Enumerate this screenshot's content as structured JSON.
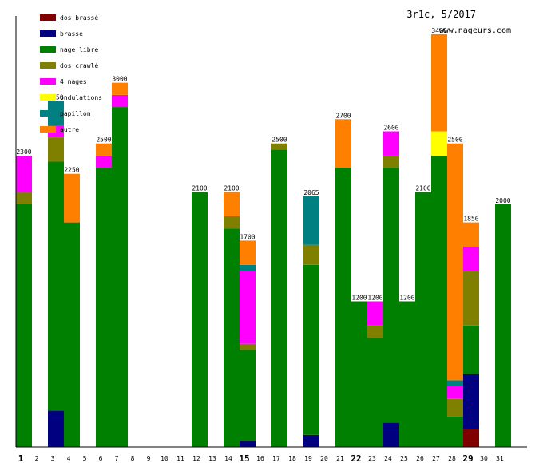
{
  "header": {
    "title": "3r1c, 5/2017",
    "site": "www.nageurs.com"
  },
  "legend": [
    {
      "key": "dos_brasse",
      "label": "dos brassé",
      "color": "#800000"
    },
    {
      "key": "brasse",
      "label": "brasse",
      "color": "#000080"
    },
    {
      "key": "nage_libre",
      "label": "nage libre",
      "color": "#008000"
    },
    {
      "key": "dos_crawle",
      "label": "dos crawlé",
      "color": "#808000"
    },
    {
      "key": "quatre_nages",
      "label": "4 nages",
      "color": "#ff00ff"
    },
    {
      "key": "ondulations",
      "label": "ondulations",
      "color": "#ffff00"
    },
    {
      "key": "papillon",
      "label": "papillon",
      "color": "#008080"
    },
    {
      "key": "autre",
      "label": "autre",
      "color": "#ff8000"
    }
  ],
  "chart_data": {
    "type": "bar",
    "stacked": true,
    "ylim": [
      0,
      3550
    ],
    "legend_position": "top-left",
    "x_ticks": [
      "1",
      "2",
      "3",
      "4",
      "5",
      "6",
      "7",
      "8",
      "9",
      "10",
      "11",
      "12",
      "13",
      "14",
      "15",
      "16",
      "17",
      "18",
      "19",
      "20",
      "21",
      "22",
      "23",
      "24",
      "25",
      "26",
      "27",
      "28",
      "29",
      "30",
      "31"
    ],
    "bold_ticks": [
      "1",
      "15",
      "22",
      "29"
    ],
    "bars": [
      {
        "day": 1,
        "total_label": "2300",
        "segments": {
          "nage_libre": 2000,
          "dos_crawle": 100,
          "quatre_nages": 300
        }
      },
      {
        "day": 3,
        "total_label": "2850",
        "segments": {
          "brasse": 300,
          "nage_libre": 2050,
          "dos_crawle": 200,
          "quatre_nages": 100,
          "papillon": 200
        }
      },
      {
        "day": 4,
        "total_label": "2250",
        "segments": {
          "nage_libre": 1850,
          "autre": 400
        }
      },
      {
        "day": 6,
        "total_label": "2500",
        "segments": {
          "nage_libre": 2300,
          "quatre_nages": 100,
          "autre": 100
        }
      },
      {
        "day": 7,
        "total_label": "3000",
        "segments": {
          "nage_libre": 2800,
          "quatre_nages": 100,
          "autre": 100
        }
      },
      {
        "day": 12,
        "total_label": "2100",
        "segments": {
          "nage_libre": 2100
        }
      },
      {
        "day": 14,
        "total_label": "2100",
        "segments": {
          "nage_libre": 1800,
          "dos_crawle": 100,
          "autre": 200
        }
      },
      {
        "day": 15,
        "total_label": "1700",
        "segments": {
          "brasse": 50,
          "nage_libre": 750,
          "dos_crawle": 50,
          "quatre_nages": 600,
          "papillon": 50,
          "autre": 200
        }
      },
      {
        "day": 17,
        "total_label": "2500",
        "segments": {
          "nage_libre": 2450,
          "dos_crawle": 50
        }
      },
      {
        "day": 19,
        "total_label": "2065",
        "segments": {
          "brasse": 100,
          "nage_libre": 1400,
          "dos_crawle": 165,
          "papillon": 400
        }
      },
      {
        "day": 21,
        "total_label": "2700",
        "segments": {
          "nage_libre": 2300,
          "autre": 400
        }
      },
      {
        "day": 22,
        "total_label": "1200",
        "segments": {
          "nage_libre": 1200
        }
      },
      {
        "day": 23,
        "total_label": "1200",
        "segments": {
          "nage_libre": 900,
          "dos_crawle": 100,
          "quatre_nages": 200
        }
      },
      {
        "day": 24,
        "total_label": "2600",
        "segments": {
          "brasse": 200,
          "nage_libre": 2100,
          "dos_crawle": 100,
          "quatre_nages": 200
        }
      },
      {
        "day": 25,
        "total_label": "1200",
        "segments": {
          "nage_libre": 1200
        }
      },
      {
        "day": 26,
        "total_label": "2100",
        "segments": {
          "nage_libre": 2100
        }
      },
      {
        "day": 27,
        "total_label": "3400",
        "segments": {
          "nage_libre": 2400,
          "ondulations": 200,
          "autre": 800
        }
      },
      {
        "day": 28,
        "total_label": "2500",
        "segments": {
          "nage_libre": 250,
          "dos_crawle": 150,
          "quatre_nages": 100,
          "papillon": 50,
          "autre": 1950
        }
      },
      {
        "day": 29,
        "total_label": "1850",
        "segments": {
          "dos_brasse": 150,
          "brasse": 450,
          "nage_libre": 400,
          "dos_crawle": 450,
          "quatre_nages": 200,
          "autre": 200
        }
      },
      {
        "day": 31,
        "total_label": "2000",
        "segments": {
          "nage_libre": 2000
        }
      }
    ]
  }
}
